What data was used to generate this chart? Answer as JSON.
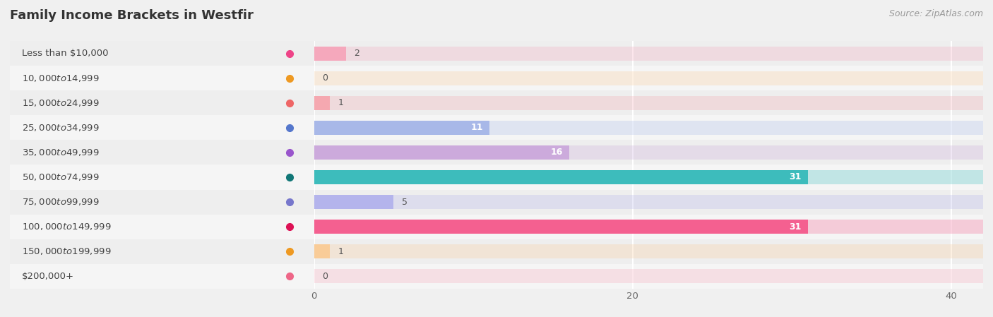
{
  "title": "Family Income Brackets in Westfir",
  "source": "Source: ZipAtlas.com",
  "categories": [
    "Less than $10,000",
    "$10,000 to $14,999",
    "$15,000 to $24,999",
    "$25,000 to $34,999",
    "$35,000 to $49,999",
    "$50,000 to $74,999",
    "$75,000 to $99,999",
    "$100,000 to $149,999",
    "$150,000 to $199,999",
    "$200,000+"
  ],
  "values": [
    2,
    0,
    1,
    11,
    16,
    31,
    5,
    31,
    1,
    0
  ],
  "bar_colors": [
    "#f5a8bc",
    "#f9cc98",
    "#f5a8b0",
    "#a8b8e8",
    "#ccaadc",
    "#3dbcbc",
    "#b4b4ec",
    "#f46090",
    "#f9cc98",
    "#f5a8b8"
  ],
  "dot_colors": [
    "#ee4488",
    "#ee9922",
    "#ee6666",
    "#5577cc",
    "#9955cc",
    "#117777",
    "#7777cc",
    "#dd1155",
    "#ee9922",
    "#ee6688"
  ],
  "row_colors": [
    "#eeeeee",
    "#f5f5f5"
  ],
  "xlim": [
    0,
    42
  ],
  "xticks": [
    0,
    20,
    40
  ],
  "background_color": "#f0f0f0",
  "title_fontsize": 13,
  "label_fontsize": 9.5,
  "value_fontsize": 9,
  "source_fontsize": 9,
  "bar_height": 0.55
}
